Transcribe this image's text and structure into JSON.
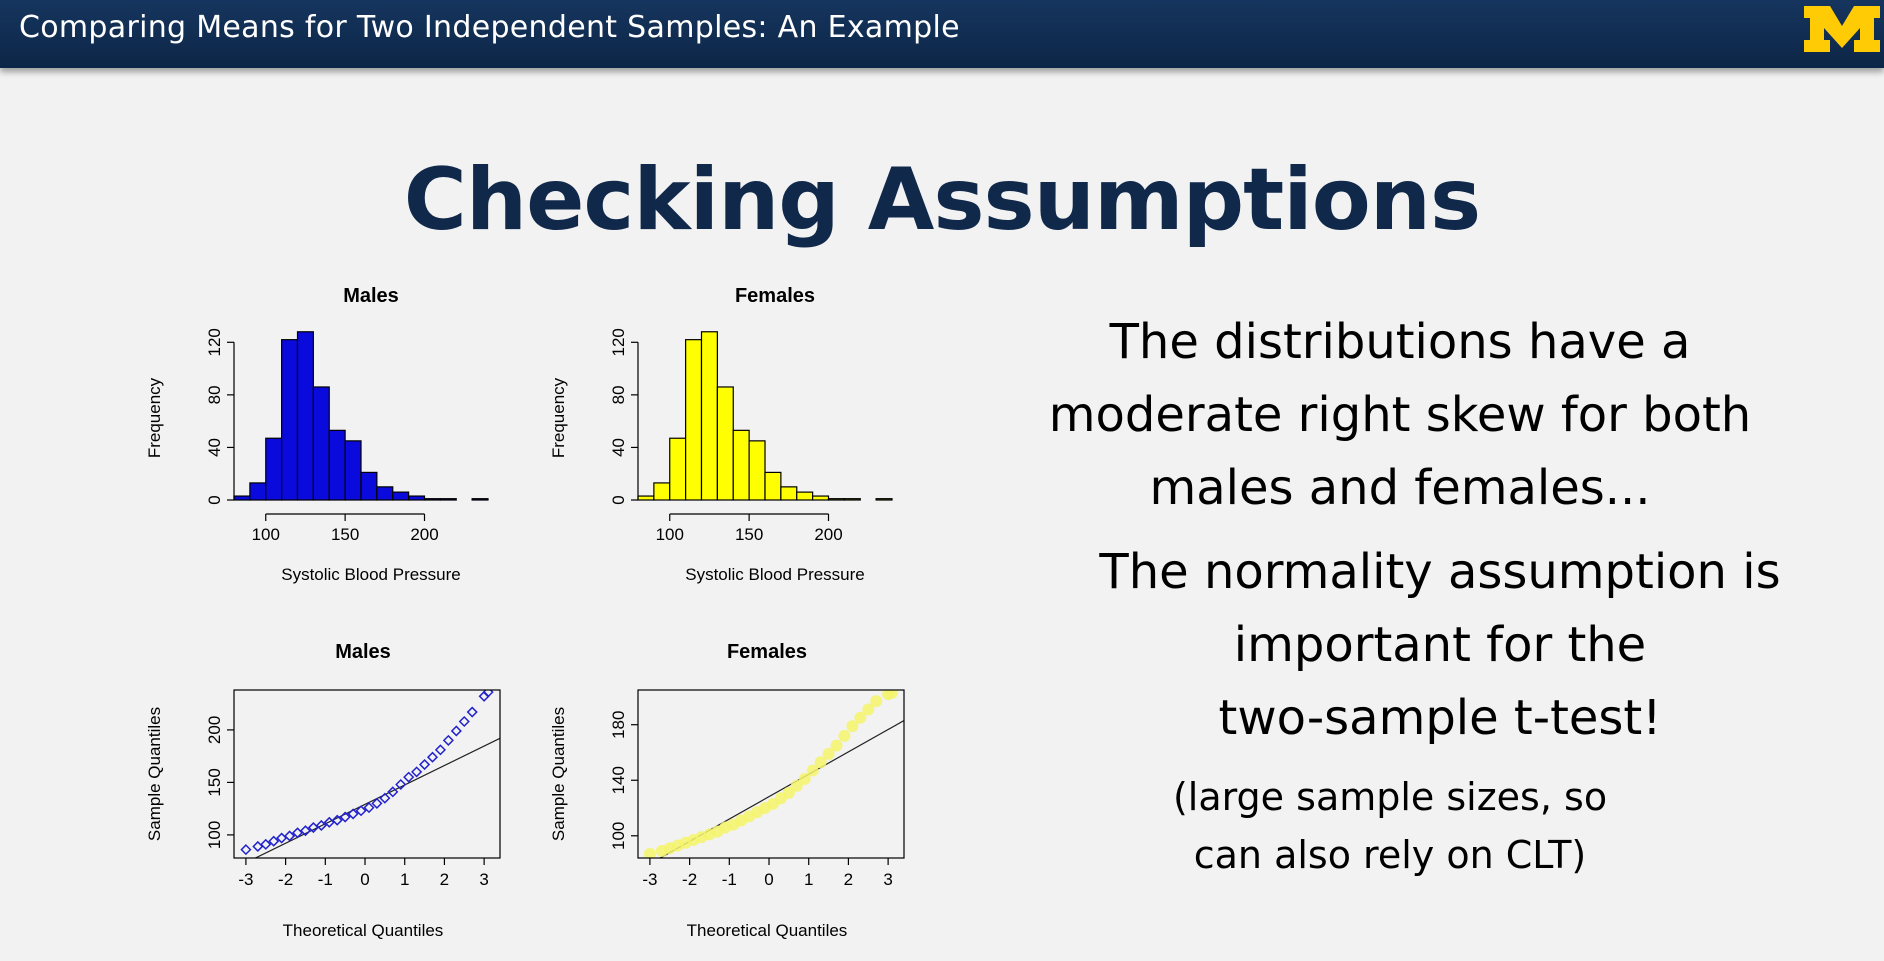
{
  "header": {
    "title": "Comparing Means for Two Independent Samples: An Example",
    "logo": "block-M-logo",
    "background": "#0f2b50",
    "logo_color": "#ffcb05"
  },
  "slide_title": "Checking Assumptions",
  "body_text": {
    "line1": [
      "The distributions have a",
      "moderate right skew for both",
      "males and females..."
    ],
    "line2": [
      "The normality assumption is",
      "important for the",
      "two-sample t-test!"
    ],
    "line3": [
      "(large sample sizes, so",
      "can also rely on CLT)"
    ]
  },
  "chart_data": [
    {
      "type": "bar",
      "title": "Males",
      "xlabel": "Systolic Blood Pressure",
      "ylabel": "Frequency",
      "color": "#0a0adc",
      "xlim": [
        80,
        240
      ],
      "ylim": [
        0,
        140
      ],
      "xticks": [
        100,
        150,
        200
      ],
      "yticks": [
        0,
        40,
        80,
        120
      ],
      "bin_width": 10,
      "bin_starts": [
        80,
        90,
        100,
        110,
        120,
        130,
        140,
        150,
        160,
        170,
        180,
        190,
        200,
        210,
        220,
        230
      ],
      "values": [
        3,
        13,
        47,
        122,
        128,
        86,
        53,
        45,
        21,
        10,
        6,
        3,
        1,
        1,
        0,
        1
      ]
    },
    {
      "type": "bar",
      "title": "Females",
      "xlabel": "Systolic Blood Pressure",
      "ylabel": "Frequency",
      "color": "#ffff00",
      "xlim": [
        80,
        240
      ],
      "ylim": [
        0,
        140
      ],
      "xticks": [
        100,
        150,
        200
      ],
      "yticks": [
        0,
        40,
        80,
        120
      ],
      "bin_width": 10,
      "bin_starts": [
        80,
        90,
        100,
        110,
        120,
        130,
        140,
        150,
        160,
        170,
        180,
        190,
        200,
        210,
        220,
        230
      ],
      "values": [
        3,
        13,
        47,
        122,
        128,
        86,
        53,
        45,
        21,
        10,
        6,
        3,
        1,
        1,
        0,
        1
      ]
    },
    {
      "type": "scatter",
      "title": "Males",
      "xlabel": "Theoretical Quantiles",
      "ylabel": "Sample Quantiles",
      "color": "#2222cc",
      "xlim": [
        -3.3,
        3.4
      ],
      "ylim": [
        78,
        238
      ],
      "xticks": [
        -3,
        -2,
        -1,
        0,
        1,
        2,
        3
      ],
      "yticks": [
        100,
        150,
        200
      ],
      "reference_line": [
        [
          -3.3,
          68
        ],
        [
          3.4,
          192
        ]
      ],
      "points": [
        [
          -3.0,
          86
        ],
        [
          -2.7,
          89
        ],
        [
          -2.5,
          91
        ],
        [
          -2.3,
          94
        ],
        [
          -2.1,
          97
        ],
        [
          -1.9,
          99
        ],
        [
          -1.7,
          102
        ],
        [
          -1.5,
          104
        ],
        [
          -1.3,
          107
        ],
        [
          -1.1,
          109
        ],
        [
          -0.9,
          112
        ],
        [
          -0.7,
          114
        ],
        [
          -0.5,
          117
        ],
        [
          -0.3,
          120
        ],
        [
          -0.1,
          123
        ],
        [
          0.1,
          126
        ],
        [
          0.3,
          130
        ],
        [
          0.5,
          135
        ],
        [
          0.7,
          141
        ],
        [
          0.9,
          148
        ],
        [
          1.1,
          155
        ],
        [
          1.3,
          160
        ],
        [
          1.5,
          167
        ],
        [
          1.7,
          174
        ],
        [
          1.9,
          181
        ],
        [
          2.1,
          190
        ],
        [
          2.3,
          199
        ],
        [
          2.5,
          208
        ],
        [
          2.7,
          217
        ],
        [
          3.0,
          232
        ],
        [
          3.1,
          236
        ]
      ]
    },
    {
      "type": "scatter",
      "title": "Females",
      "xlabel": "Theoretical Quantiles",
      "ylabel": "Sample Quantiles",
      "color": "#f5f56a",
      "xlim": [
        -3.3,
        3.4
      ],
      "ylim": [
        84,
        205
      ],
      "xticks": [
        -3,
        -2,
        -1,
        0,
        1,
        2,
        3
      ],
      "yticks": [
        100,
        140,
        180
      ],
      "reference_line": [
        [
          -3.3,
          75
        ],
        [
          3.4,
          183
        ]
      ],
      "points": [
        [
          -3.0,
          87
        ],
        [
          -2.7,
          89
        ],
        [
          -2.5,
          91
        ],
        [
          -2.3,
          93
        ],
        [
          -2.1,
          95
        ],
        [
          -1.9,
          97
        ],
        [
          -1.7,
          99
        ],
        [
          -1.5,
          101
        ],
        [
          -1.3,
          103
        ],
        [
          -1.1,
          106
        ],
        [
          -0.9,
          108
        ],
        [
          -0.7,
          111
        ],
        [
          -0.5,
          114
        ],
        [
          -0.3,
          117
        ],
        [
          -0.1,
          120
        ],
        [
          0.1,
          123
        ],
        [
          0.3,
          127
        ],
        [
          0.5,
          131
        ],
        [
          0.7,
          136
        ],
        [
          0.9,
          141
        ],
        [
          1.1,
          147
        ],
        [
          1.3,
          153
        ],
        [
          1.5,
          159
        ],
        [
          1.7,
          165
        ],
        [
          1.9,
          172
        ],
        [
          2.1,
          179
        ],
        [
          2.3,
          185
        ],
        [
          2.5,
          191
        ],
        [
          2.7,
          197
        ],
        [
          3.0,
          202
        ],
        [
          3.1,
          203
        ]
      ]
    }
  ]
}
